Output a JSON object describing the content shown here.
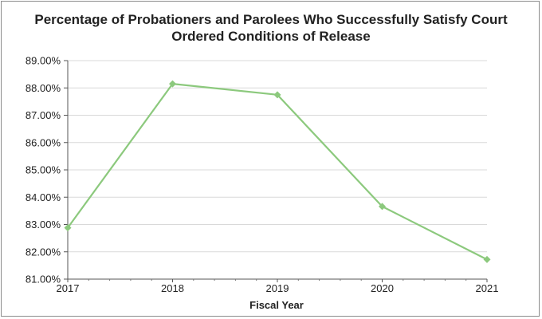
{
  "chart_data": {
    "type": "line",
    "title_line1": "Percentage of Probationers and Parolees Who Successfully Satisfy Court",
    "title_line2": "Ordered Conditions of Release",
    "xlabel": "Fiscal Year",
    "ylabel": "",
    "categories": [
      "2017",
      "2018",
      "2019",
      "2020",
      "2021"
    ],
    "series": [
      {
        "values": [
          82.88,
          88.15,
          87.75,
          83.66,
          81.72
        ],
        "color": "#8cc97d"
      }
    ],
    "ylim": [
      81.0,
      89.0
    ],
    "yticks": [
      "81.00%",
      "82.00%",
      "83.00%",
      "84.00%",
      "85.00%",
      "86.00%",
      "87.00%",
      "88.00%",
      "89.00%"
    ],
    "grid": true,
    "legend": "none"
  }
}
